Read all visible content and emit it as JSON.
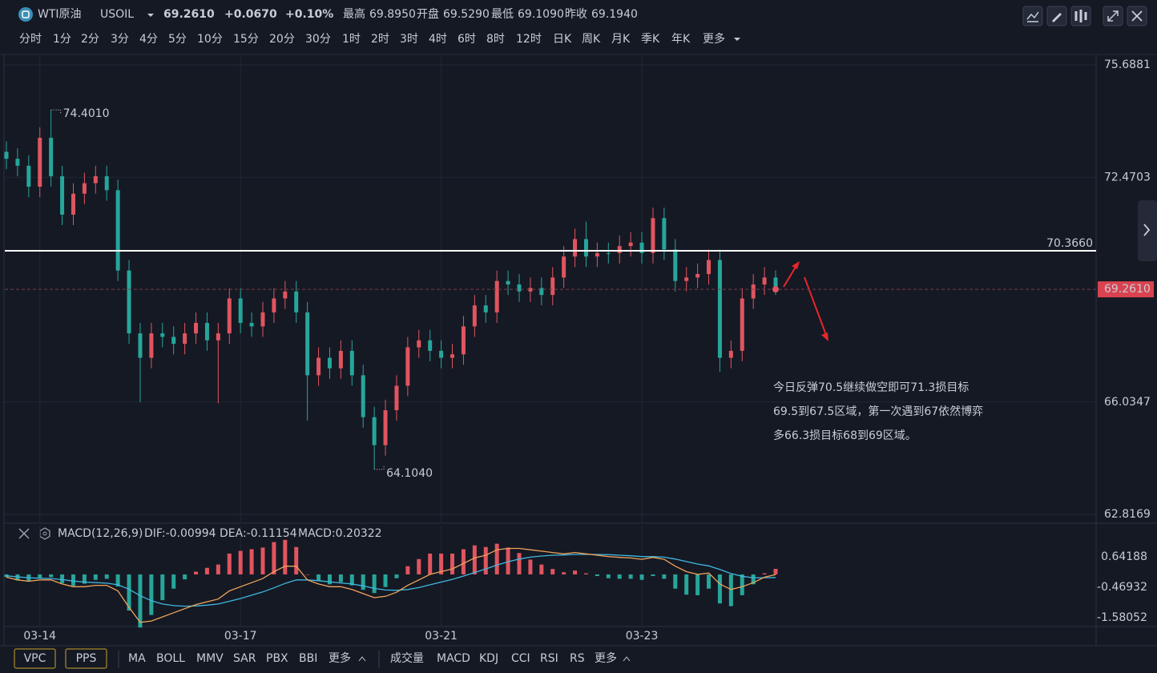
{
  "header": {
    "name": "WTI原油",
    "code": "USOIL",
    "price": "69.2610",
    "change": "+0.0670",
    "change_pct": "+0.10%",
    "stats": [
      {
        "label": "最高",
        "value": "69.8950"
      },
      {
        "label": "开盘",
        "value": "69.5290"
      },
      {
        "label": "最低",
        "value": "69.1090"
      },
      {
        "label": "昨收",
        "value": "69.1940"
      }
    ]
  },
  "periods": [
    "分时",
    "1分",
    "2分",
    "3分",
    "4分",
    "5分",
    "10分",
    "15分",
    "20分",
    "30分",
    "1时",
    "2时",
    "3时",
    "4时",
    "6时",
    "8时",
    "12时",
    "日K",
    "周K",
    "月K",
    "季K",
    "年K",
    "更多"
  ],
  "active_period": "1时",
  "chart_data": {
    "type": "candlestick",
    "categories": [
      null,
      null,
      null,
      "03-14",
      null,
      null,
      null,
      null,
      null,
      null,
      null,
      null,
      null,
      null,
      null,
      null,
      null,
      null,
      null,
      null,
      null,
      "03-17",
      null,
      null,
      null,
      null,
      null,
      null,
      null,
      null,
      null,
      null,
      null,
      null,
      null,
      null,
      null,
      null,
      null,
      "03-21",
      null,
      null,
      null,
      null,
      null,
      null,
      null,
      null,
      null,
      null,
      null,
      null,
      null,
      null,
      null,
      null,
      null,
      "03-23",
      null,
      null,
      null,
      null,
      null,
      null,
      null,
      null,
      null,
      null,
      null,
      null
    ],
    "open": [
      73.2,
      73.0,
      72.8,
      72.2,
      73.6,
      72.5,
      71.4,
      72.0,
      72.3,
      72.5,
      72.1,
      69.8,
      68.0,
      67.3,
      68.0,
      67.9,
      67.7,
      68.0,
      68.3,
      67.8,
      68.0,
      69.0,
      68.3,
      68.2,
      68.6,
      69.0,
      69.2,
      68.6,
      66.8,
      67.3,
      67.0,
      67.5,
      66.8,
      65.6,
      64.8,
      65.8,
      66.5,
      67.6,
      67.8,
      67.5,
      67.3,
      67.4,
      68.2,
      68.8,
      68.6,
      69.5,
      69.4,
      69.2,
      69.3,
      69.1,
      69.6,
      70.2,
      70.7,
      70.2,
      70.3,
      70.3,
      70.5,
      70.6,
      70.3,
      71.3,
      70.4,
      69.5,
      69.6,
      69.7,
      70.1,
      67.3,
      67.5,
      69.0,
      69.4,
      69.6
    ],
    "high": [
      73.5,
      73.3,
      73.1,
      73.9,
      74.401,
      72.8,
      72.3,
      72.6,
      72.8,
      72.8,
      72.4,
      70.1,
      68.3,
      68.3,
      68.3,
      68.2,
      68.3,
      68.6,
      68.6,
      68.3,
      69.3,
      69.3,
      68.6,
      68.9,
      69.3,
      69.5,
      69.5,
      68.9,
      67.6,
      67.6,
      67.8,
      67.8,
      67.1,
      65.9,
      66.1,
      66.8,
      67.9,
      68.1,
      68.1,
      67.8,
      67.7,
      68.5,
      69.1,
      69.1,
      69.8,
      69.8,
      69.7,
      69.6,
      69.6,
      69.9,
      70.5,
      71.0,
      71.2,
      70.6,
      70.6,
      70.8,
      70.9,
      70.9,
      71.6,
      71.6,
      70.7,
      69.9,
      70.0,
      70.4,
      70.4,
      67.8,
      69.3,
      69.7,
      69.9,
      69.8
    ],
    "low": [
      72.7,
      72.5,
      71.9,
      71.9,
      72.2,
      71.1,
      71.1,
      71.7,
      72.0,
      71.8,
      69.5,
      67.7,
      66.03,
      67.0,
      67.6,
      67.4,
      67.4,
      67.7,
      67.5,
      66.0,
      67.7,
      68.0,
      67.9,
      67.9,
      68.3,
      68.7,
      68.3,
      65.5,
      66.5,
      66.7,
      66.7,
      66.5,
      65.3,
      64.104,
      64.5,
      65.5,
      66.2,
      67.3,
      67.2,
      67.0,
      67.0,
      67.1,
      67.9,
      68.3,
      68.3,
      69.1,
      68.9,
      68.9,
      68.8,
      68.8,
      69.3,
      69.9,
      69.9,
      69.9,
      70.0,
      70.0,
      70.2,
      70.0,
      70.0,
      70.1,
      69.2,
      69.2,
      69.3,
      69.4,
      66.9,
      67.0,
      67.2,
      68.7,
      69.1,
      69.1
    ],
    "close": [
      73.0,
      72.8,
      72.2,
      73.6,
      72.5,
      71.4,
      72.0,
      72.3,
      72.5,
      72.1,
      69.8,
      68.0,
      67.3,
      68.0,
      67.9,
      67.7,
      68.0,
      68.3,
      67.8,
      68.0,
      69.0,
      68.3,
      68.2,
      68.6,
      69.0,
      69.2,
      68.6,
      66.8,
      67.3,
      67.0,
      67.5,
      66.8,
      65.6,
      64.8,
      65.8,
      66.5,
      67.6,
      67.8,
      67.5,
      67.3,
      67.4,
      68.2,
      68.8,
      68.6,
      69.5,
      69.4,
      69.2,
      69.3,
      69.1,
      69.6,
      70.2,
      70.7,
      70.2,
      70.3,
      70.3,
      70.5,
      70.6,
      70.3,
      71.3,
      70.4,
      69.5,
      69.6,
      69.7,
      70.1,
      67.3,
      67.5,
      69.0,
      69.4,
      69.6,
      69.261
    ],
    "up_color": "#e0555f",
    "down_color": "#26a69a",
    "grid": true,
    "ylim": [
      62.5875,
      75.9405
    ],
    "yticks": [
      75.6881,
      72.4703,
      66.0347,
      62.8169
    ],
    "hline": {
      "value": 70.366,
      "label": "70.3660"
    },
    "last_price": {
      "value": 69.261,
      "label": "69.2610"
    },
    "high_marker": {
      "value": 74.401,
      "label": "74.4010"
    },
    "low_marker": {
      "value": 64.104,
      "label": "64.1040"
    },
    "annotation": [
      "今日反弹70.5继续做空即可71.3损目标",
      "69.5到67.5区域，第一次遇到67依然博弈",
      "多66.3损目标68到69区域。"
    ],
    "macd": {
      "title": "MACD(12,26,9)",
      "dif_label": "DIF:-0.00994",
      "dea_label": "DEA:-0.11154",
      "macd_label": "MACD:0.20322",
      "dif_color": "#f0a35a",
      "dea_color": "#3fb8e0",
      "macd_color": "#b08ee0",
      "ylim": [
        -1.902,
        1.782
      ],
      "yticks": [
        0.64188,
        -0.46932,
        -1.58052
      ],
      "dif": [
        -0.1,
        -0.2,
        -0.25,
        -0.2,
        -0.2,
        -0.35,
        -0.45,
        -0.45,
        -0.4,
        -0.4,
        -0.6,
        -1.2,
        -1.75,
        -1.7,
        -1.55,
        -1.4,
        -1.25,
        -1.1,
        -1.0,
        -0.9,
        -0.6,
        -0.45,
        -0.3,
        -0.15,
        0.1,
        0.3,
        0.3,
        -0.2,
        -0.35,
        -0.45,
        -0.45,
        -0.55,
        -0.7,
        -0.85,
        -0.8,
        -0.65,
        -0.4,
        -0.2,
        0.0,
        0.1,
        0.2,
        0.4,
        0.6,
        0.7,
        0.9,
        0.95,
        0.95,
        0.9,
        0.85,
        0.8,
        0.75,
        0.8,
        0.75,
        0.7,
        0.65,
        0.62,
        0.6,
        0.55,
        0.62,
        0.55,
        0.3,
        0.1,
        0.0,
        0.05,
        -0.35,
        -0.55,
        -0.45,
        -0.3,
        -0.1,
        -0.00994
      ],
      "dea": [
        -0.05,
        -0.09,
        -0.12,
        -0.14,
        -0.15,
        -0.19,
        -0.24,
        -0.28,
        -0.3,
        -0.32,
        -0.38,
        -0.54,
        -0.78,
        -0.96,
        -1.08,
        -1.14,
        -1.16,
        -1.15,
        -1.12,
        -1.08,
        -0.98,
        -0.88,
        -0.76,
        -0.64,
        -0.49,
        -0.33,
        -0.2,
        -0.2,
        -0.23,
        -0.27,
        -0.31,
        -0.35,
        -0.42,
        -0.51,
        -0.57,
        -0.58,
        -0.55,
        -0.48,
        -0.38,
        -0.28,
        -0.18,
        -0.06,
        0.07,
        0.2,
        0.34,
        0.46,
        0.56,
        0.63,
        0.67,
        0.7,
        0.71,
        0.73,
        0.73,
        0.73,
        0.72,
        0.7,
        0.68,
        0.65,
        0.65,
        0.63,
        0.56,
        0.47,
        0.38,
        0.31,
        0.18,
        0.03,
        -0.07,
        -0.12,
        -0.12,
        -0.11154
      ],
      "hist": [
        -0.1,
        -0.22,
        -0.26,
        -0.12,
        -0.1,
        -0.32,
        -0.42,
        -0.34,
        -0.2,
        -0.16,
        -0.44,
        -1.32,
        -1.94,
        -1.48,
        -0.94,
        -0.52,
        -0.18,
        0.1,
        0.24,
        0.36,
        0.76,
        0.86,
        0.92,
        0.98,
        1.18,
        1.26,
        1.0,
        0.0,
        -0.24,
        -0.36,
        -0.28,
        -0.4,
        -0.56,
        -0.68,
        -0.46,
        -0.14,
        0.3,
        0.56,
        0.76,
        0.76,
        0.76,
        0.92,
        1.06,
        1.0,
        1.12,
        0.98,
        0.78,
        0.54,
        0.36,
        0.2,
        0.08,
        0.14,
        0.04,
        -0.06,
        -0.14,
        -0.16,
        -0.16,
        -0.2,
        -0.06,
        -0.16,
        -0.52,
        -0.74,
        -0.76,
        -0.52,
        -1.06,
        -1.16,
        -0.76,
        -0.36,
        0.04,
        0.20322
      ]
    }
  },
  "footer": {
    "buttons": [
      "VPC",
      "PPS"
    ],
    "main_indicators": [
      "MA",
      "BOLL",
      "MMV",
      "SAR",
      "PBX",
      "BBI",
      "更多"
    ],
    "sub_indicators": [
      "成交量",
      "MACD",
      "KDJ",
      "CCI",
      "RSI",
      "RS",
      "更多"
    ]
  }
}
